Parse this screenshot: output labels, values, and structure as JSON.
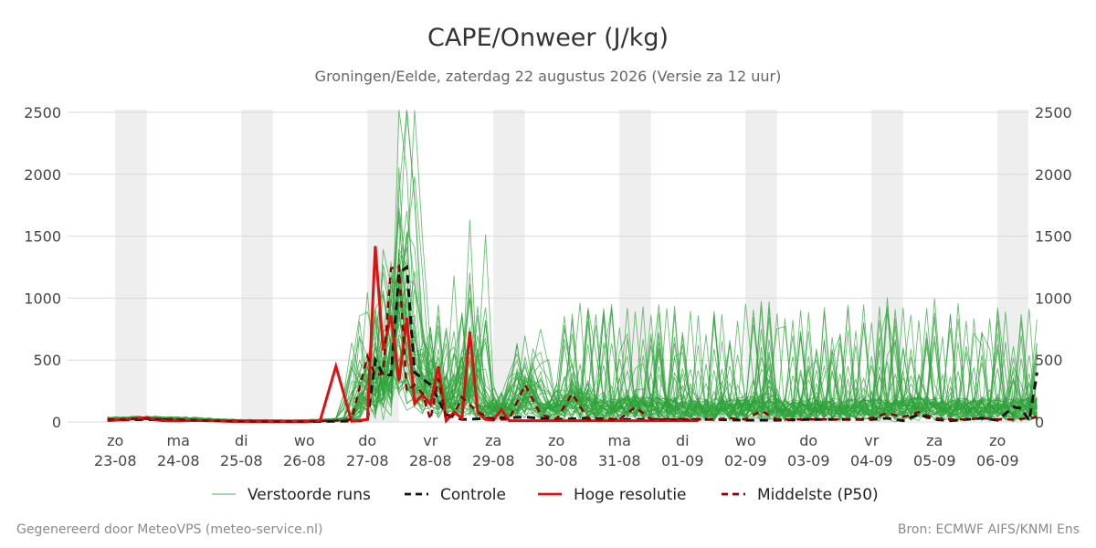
{
  "chart_data": {
    "type": "line",
    "title": "CAPE/Onweer (J/kg)",
    "subtitle": "Groningen/Eelde, zaterdag 22 augustus 2026 (Versie za 12 uur)",
    "ylim": [
      0,
      2500
    ],
    "yticks": [
      "0",
      "500",
      "1000",
      "1500",
      "2000",
      "2500"
    ],
    "x": [
      "23-08 00",
      "23-08 12",
      "24-08 00",
      "24-08 12",
      "25-08 00",
      "25-08 12",
      "26-08 00",
      "26-08 12",
      "27-08 00",
      "27-08 12",
      "28-08 00",
      "28-08 12",
      "29-08 00",
      "29-08 12",
      "30-08 00",
      "30-08 12",
      "31-08 00",
      "31-08 12",
      "01-09 00",
      "01-09 12",
      "02-09 00",
      "02-09 12",
      "03-09 00",
      "03-09 12",
      "04-09 00",
      "04-09 12",
      "05-09 00",
      "05-09 12",
      "06-09 00",
      "06-09 12"
    ],
    "xticks": [
      {
        "day": "zo",
        "date": "23-08"
      },
      {
        "day": "ma",
        "date": "24-08"
      },
      {
        "day": "di",
        "date": "25-08"
      },
      {
        "day": "wo",
        "date": "26-08"
      },
      {
        "day": "do",
        "date": "27-08"
      },
      {
        "day": "vr",
        "date": "28-08"
      },
      {
        "day": "za",
        "date": "29-08"
      },
      {
        "day": "zo",
        "date": "30-08"
      },
      {
        "day": "ma",
        "date": "31-08"
      },
      {
        "day": "di",
        "date": "01-09"
      },
      {
        "day": "wo",
        "date": "02-09"
      },
      {
        "day": "do",
        "date": "03-09"
      },
      {
        "day": "vr",
        "date": "04-09"
      },
      {
        "day": "za",
        "date": "05-09"
      },
      {
        "day": "zo",
        "date": "06-09"
      }
    ],
    "shaded_bands": [
      [
        "23-08 00",
        "23-08 12"
      ],
      [
        "25-08 00",
        "25-08 12"
      ],
      [
        "27-08 00",
        "27-08 12"
      ],
      [
        "29-08 00",
        "29-08 12"
      ],
      [
        "31-08 00",
        "31-08 12"
      ],
      [
        "02-09 00",
        "02-09 12"
      ],
      [
        "04-09 00",
        "04-09 12"
      ],
      [
        "06-09 00",
        "06-09 12"
      ]
    ],
    "grid": true,
    "legend_position": "bottom",
    "series": [
      {
        "name": "Hoge resolutie",
        "color": "#dd1111",
        "style": "solid",
        "x": [
          "22-08 21",
          "23-08 00",
          "23-08 03",
          "23-08 06",
          "23-08 09",
          "23-08 12",
          "23-08 15",
          "23-08 18",
          "24-08 00",
          "24-08 06",
          "24-08 12",
          "24-08 18",
          "25-08 00",
          "25-08 06",
          "25-08 12",
          "25-08 18",
          "26-08 00",
          "26-08 06",
          "26-08 12",
          "26-08 18",
          "27-08 00",
          "27-08 03",
          "27-08 06",
          "27-08 09",
          "27-08 12",
          "27-08 15",
          "27-08 18",
          "27-08 21",
          "28-08 00",
          "28-08 03",
          "28-08 06",
          "28-08 09",
          "28-08 12",
          "28-08 15",
          "28-08 18",
          "28-08 21",
          "29-08 00",
          "29-08 03",
          "29-08 06",
          "29-08 09",
          "29-08 12",
          "29-08 15",
          "29-08 18",
          "29-08 21",
          "30-08 00",
          "30-08 03",
          "30-08 06",
          "30-08 09",
          "30-08 12",
          "30-08 15",
          "30-08 18",
          "30-08 21",
          "31-08 00",
          "31-08 03",
          "31-08 06",
          "31-08 09",
          "31-08 12",
          "31-08 15",
          "31-08 18",
          "01-09 00",
          "01-09 06"
        ],
        "values": [
          10,
          15,
          20,
          25,
          30,
          35,
          20,
          10,
          8,
          12,
          10,
          5,
          3,
          2,
          2,
          2,
          2,
          10,
          450,
          5,
          20,
          1420,
          580,
          860,
          330,
          840,
          150,
          220,
          140,
          450,
          10,
          80,
          30,
          730,
          80,
          20,
          15,
          100,
          10,
          10,
          10,
          10,
          10,
          10,
          10,
          10,
          10,
          10,
          10,
          10,
          10,
          10,
          10,
          10,
          10,
          10,
          10,
          10,
          10,
          10,
          10
        ]
      },
      {
        "name": "Controle",
        "color": "#111111",
        "style": "dashed",
        "x": [
          "22-08 21",
          "23-08 12",
          "24-08 00",
          "24-08 12",
          "25-08 00",
          "25-08 12",
          "26-08 00",
          "26-08 12",
          "27-08 00",
          "27-08 03",
          "27-08 06",
          "27-08 09",
          "27-08 12",
          "27-08 15",
          "27-08 18",
          "28-08 00",
          "28-08 06",
          "28-08 12",
          "29-08 00",
          "29-08 12",
          "30-08 00",
          "30-08 12",
          "31-08 00",
          "31-08 12",
          "01-09 00",
          "01-09 12",
          "02-09 00",
          "02-09 12",
          "03-09 00",
          "03-09 12",
          "04-09 00",
          "04-09 06",
          "04-09 12",
          "04-09 18",
          "05-09 00",
          "05-09 06",
          "05-09 12",
          "05-09 18",
          "06-09 00",
          "06-09 06",
          "06-09 09",
          "06-09 12",
          "06-09 15"
        ],
        "values": [
          15,
          20,
          15,
          10,
          5,
          3,
          3,
          5,
          10,
          500,
          380,
          380,
          1200,
          1250,
          400,
          300,
          60,
          20,
          30,
          40,
          20,
          30,
          20,
          20,
          20,
          20,
          15,
          15,
          20,
          20,
          20,
          30,
          10,
          60,
          20,
          10,
          20,
          30,
          15,
          120,
          110,
          10,
          400
        ]
      },
      {
        "name": "Middelste (P50)",
        "color": "#8b0000",
        "style": "dashed",
        "x": [
          "22-08 21",
          "23-08 12",
          "24-08 00",
          "24-08 12",
          "25-08 00",
          "25-08 12",
          "26-08 00",
          "26-08 12",
          "26-08 18",
          "27-08 00",
          "27-08 03",
          "27-08 06",
          "27-08 09",
          "27-08 12",
          "27-08 15",
          "27-08 18",
          "27-08 21",
          "28-08 00",
          "28-08 03",
          "28-08 06",
          "28-08 09",
          "28-08 12",
          "28-08 18",
          "29-08 00",
          "29-08 06",
          "29-08 12",
          "29-08 18",
          "30-08 00",
          "30-08 06",
          "30-08 12",
          "30-08 18",
          "31-08 00",
          "31-08 06",
          "31-08 12",
          "31-08 18",
          "01-09 00",
          "01-09 06",
          "01-09 12",
          "01-09 18",
          "02-09 00",
          "02-09 06",
          "02-09 12",
          "02-09 18",
          "03-09 00",
          "03-09 06",
          "03-09 12",
          "03-09 18",
          "04-09 00",
          "04-09 06",
          "04-09 12",
          "04-09 18",
          "05-09 00",
          "05-09 06",
          "05-09 12",
          "05-09 18",
          "06-09 00",
          "06-09 06",
          "06-09 12",
          "06-09 15"
        ],
        "values": [
          20,
          25,
          20,
          10,
          5,
          3,
          3,
          10,
          20,
          530,
          380,
          390,
          1240,
          1260,
          250,
          300,
          230,
          20,
          350,
          20,
          60,
          200,
          80,
          20,
          20,
          300,
          60,
          20,
          230,
          20,
          20,
          20,
          120,
          20,
          20,
          20,
          20,
          20,
          30,
          20,
          90,
          20,
          20,
          20,
          20,
          20,
          20,
          30,
          70,
          40,
          80,
          30,
          20,
          20,
          30,
          20,
          20,
          30,
          40
        ]
      }
    ],
    "ensemble": {
      "name": "Verstoorde runs",
      "color": "#2fa23a",
      "members": 50
    }
  },
  "legend": [
    {
      "label": "Verstoorde runs",
      "color": "#4caf50",
      "style": "thin"
    },
    {
      "label": "Controle",
      "color": "#111111",
      "style": "dashed"
    },
    {
      "label": "Hoge resolutie",
      "color": "#dd1111",
      "style": "solid"
    },
    {
      "label": "Middelste (P50)",
      "color": "#8b0000",
      "style": "dashed"
    }
  ],
  "footer": {
    "left": "Gegenereerd door MeteoVPS (meteo-service.nl)",
    "right": "Bron: ECMWF AIFS/KNMI Ens"
  }
}
